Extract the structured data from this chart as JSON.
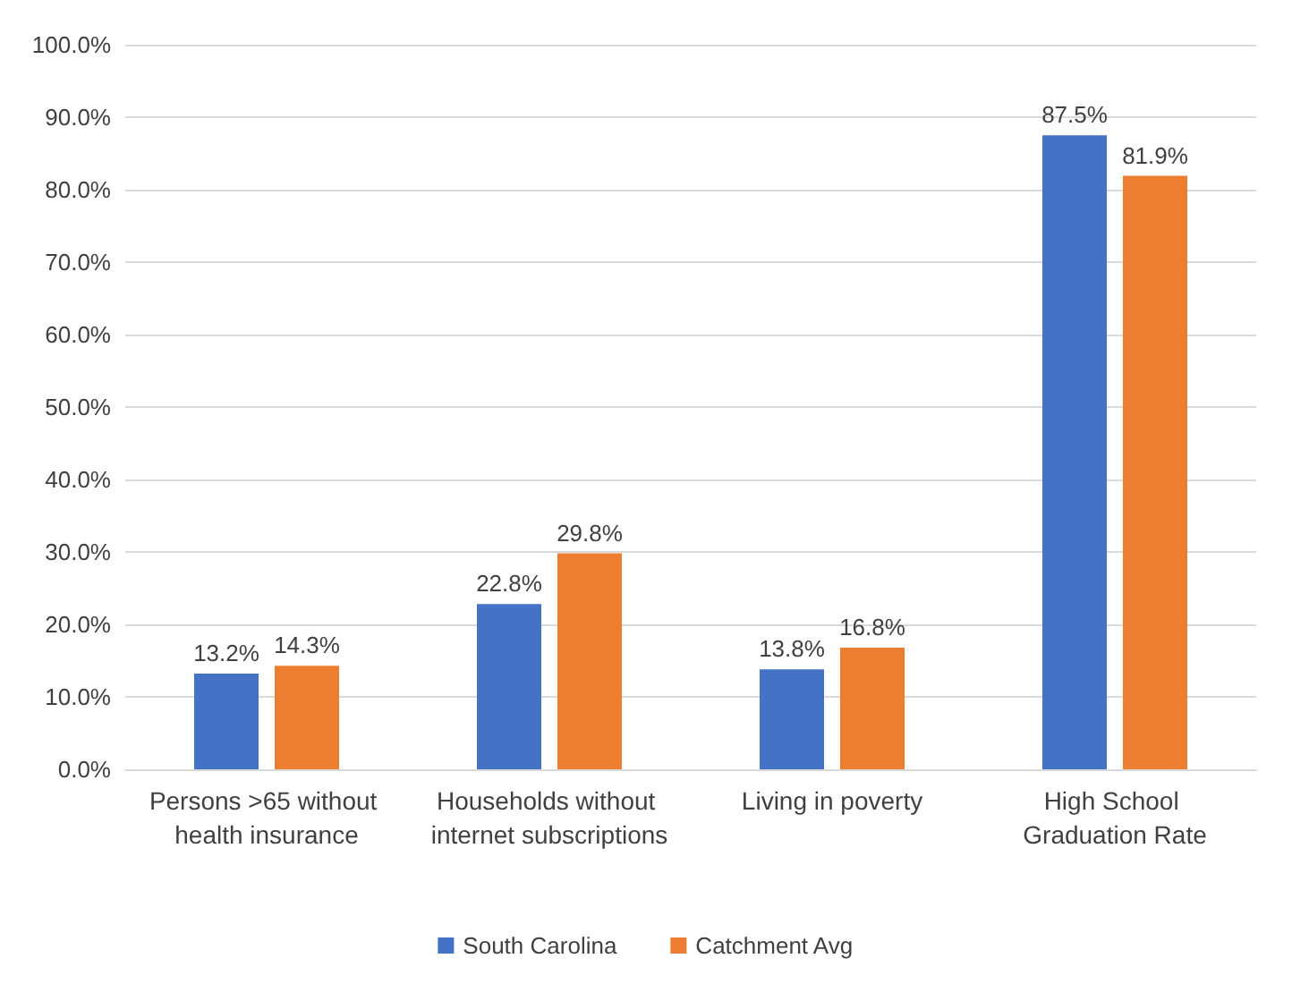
{
  "chart_data": {
    "type": "bar",
    "categories": [
      "Persons >65 without health insurance",
      "Households without internet subscriptions",
      "Living in poverty",
      "High School Graduation Rate"
    ],
    "series": [
      {
        "name": "South Carolina",
        "color": "#4472c4",
        "values": [
          13.2,
          22.8,
          13.8,
          87.5
        ],
        "value_labels": [
          "13.2%",
          "22.8%",
          "13.8%",
          "87.5%"
        ]
      },
      {
        "name": "Catchment Avg",
        "color": "#ed7d31",
        "values": [
          14.3,
          29.8,
          16.8,
          81.9
        ],
        "value_labels": [
          "14.3%",
          "29.8%",
          "16.8%",
          "81.9%"
        ]
      }
    ],
    "ylim": [
      0,
      100
    ],
    "yticks": [
      {
        "value": 0,
        "label": "0.0%"
      },
      {
        "value": 10,
        "label": "10.0%"
      },
      {
        "value": 20,
        "label": "20.0%"
      },
      {
        "value": 30,
        "label": "30.0%"
      },
      {
        "value": 40,
        "label": "40.0%"
      },
      {
        "value": 50,
        "label": "50.0%"
      },
      {
        "value": 60,
        "label": "60.0%"
      },
      {
        "value": 70,
        "label": "70.0%"
      },
      {
        "value": 80,
        "label": "80.0%"
      },
      {
        "value": 90,
        "label": "90.0%"
      },
      {
        "value": 100,
        "label": "100.0%"
      }
    ],
    "grid": "y",
    "legend": "bottom"
  }
}
